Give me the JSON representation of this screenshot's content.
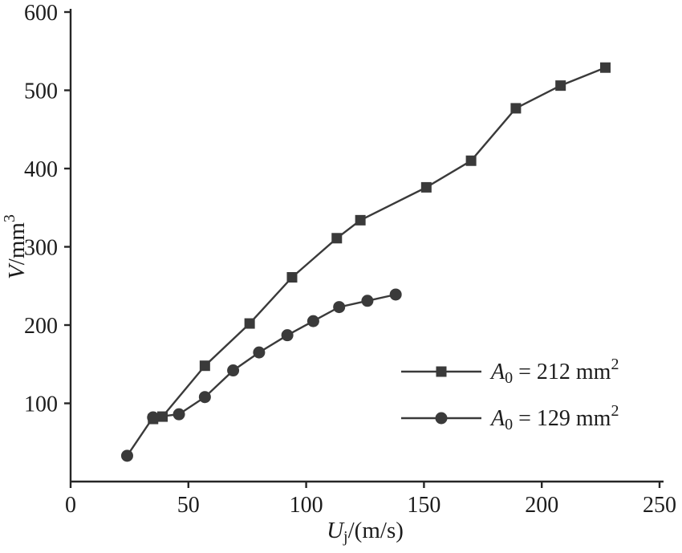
{
  "figure": {
    "background": "#ffffff"
  },
  "chart_data": {
    "type": "line",
    "title": "",
    "xlabel": "Uj/(m/s)",
    "ylabel": "V/mm3",
    "xlabel_parts": [
      {
        "t": "U",
        "style": "italic"
      },
      {
        "t": "j",
        "pos": "sub"
      },
      {
        "t": "/(m/s)"
      }
    ],
    "ylabel_parts": [
      {
        "t": "V",
        "style": "italic"
      },
      {
        "t": "/mm"
      },
      {
        "t": "3",
        "pos": "sup"
      }
    ],
    "xlim": [
      0,
      250
    ],
    "ylim": [
      0,
      600
    ],
    "xticks": [
      0,
      50,
      100,
      150,
      200,
      250
    ],
    "yticks": [
      100,
      200,
      300,
      400,
      500,
      600
    ],
    "grid": false,
    "legend_position": "lower-right",
    "axis_color": "#262626",
    "series_color": "#3a3a3a",
    "series": [
      {
        "name": "A0 = 212 mm2",
        "label_parts": [
          {
            "t": "A",
            "style": "italic"
          },
          {
            "t": "0",
            "pos": "sub"
          },
          {
            "t": " = 212 mm"
          },
          {
            "t": "2",
            "pos": "sup"
          }
        ],
        "marker": "square",
        "x": [
          35,
          39,
          57,
          76,
          94,
          113,
          123,
          151,
          170,
          189,
          208,
          227
        ],
        "y": [
          80,
          83,
          148,
          202,
          261,
          311,
          334,
          376,
          410,
          477,
          506,
          529
        ]
      },
      {
        "name": "A0 = 129 mm2",
        "label_parts": [
          {
            "t": "A",
            "style": "italic"
          },
          {
            "t": "0",
            "pos": "sub"
          },
          {
            "t": " = 129 mm"
          },
          {
            "t": "2",
            "pos": "sup"
          }
        ],
        "marker": "circle",
        "x": [
          24,
          35,
          46,
          57,
          69,
          80,
          92,
          103,
          114,
          126,
          138
        ],
        "y": [
          33,
          82,
          86,
          108,
          142,
          165,
          187,
          205,
          223,
          231,
          239
        ]
      }
    ]
  }
}
